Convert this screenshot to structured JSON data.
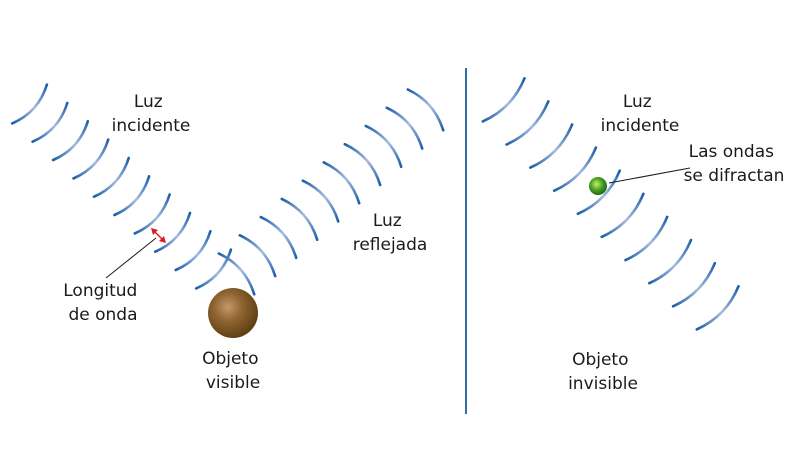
{
  "left_panel": {
    "incident_label": [
      "Luz",
      "incidente"
    ],
    "reflected_label": [
      "Luz",
      "reflejada"
    ],
    "wavelength_label": [
      "Longitud",
      "de onda"
    ],
    "object_label": [
      "Objeto",
      "visible"
    ]
  },
  "right_panel": {
    "incident_label": [
      "Luz",
      "incidente"
    ],
    "diffraction_label": [
      "Las ondas",
      "se difractan"
    ],
    "object_label": [
      "Objeto",
      "invisible"
    ]
  },
  "colors": {
    "wave_dark": "#1b5ea8",
    "wave_light": "#a8bde0",
    "divider": "#2e6fa8",
    "visible_object": "#7a5326",
    "invisible_object": "#2f8a1f",
    "wavelength_marker": "#d42020"
  }
}
